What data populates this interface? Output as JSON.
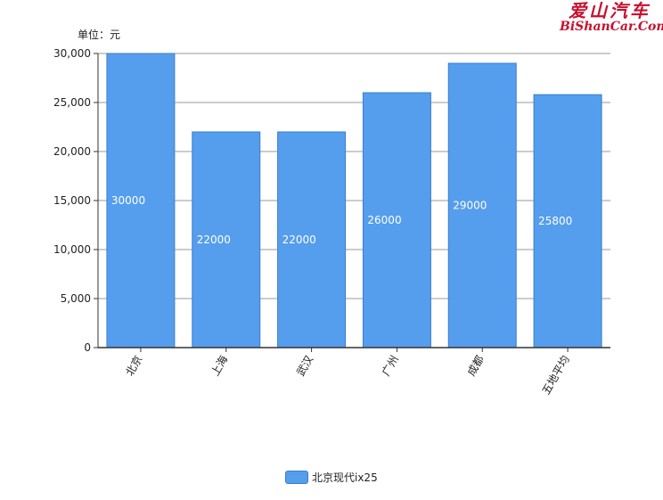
{
  "chart_data": {
    "type": "bar",
    "unit_label": "单位：元",
    "categories": [
      "北京",
      "上海",
      "武汉",
      "广州",
      "成都",
      "五地平均"
    ],
    "series": [
      {
        "name": "北京现代ix25",
        "values": [
          30000,
          22000,
          22000,
          26000,
          29000,
          25800
        ]
      }
    ],
    "data_labels": [
      "30000",
      "22000",
      "22000",
      "26000",
      "29000",
      "25800"
    ],
    "y_ticks": [
      "0",
      "5,000",
      "10,000",
      "15,000",
      "20,000",
      "25,000",
      "30,000"
    ],
    "ylim": [
      0,
      30000
    ],
    "grid": true,
    "legend_position": "bottom-center",
    "bar_color": "#559ded",
    "bar_border_color": "#3a7fd0"
  },
  "watermark": {
    "chinese": "爱山汽车",
    "english": "BiShanCar.Com"
  }
}
